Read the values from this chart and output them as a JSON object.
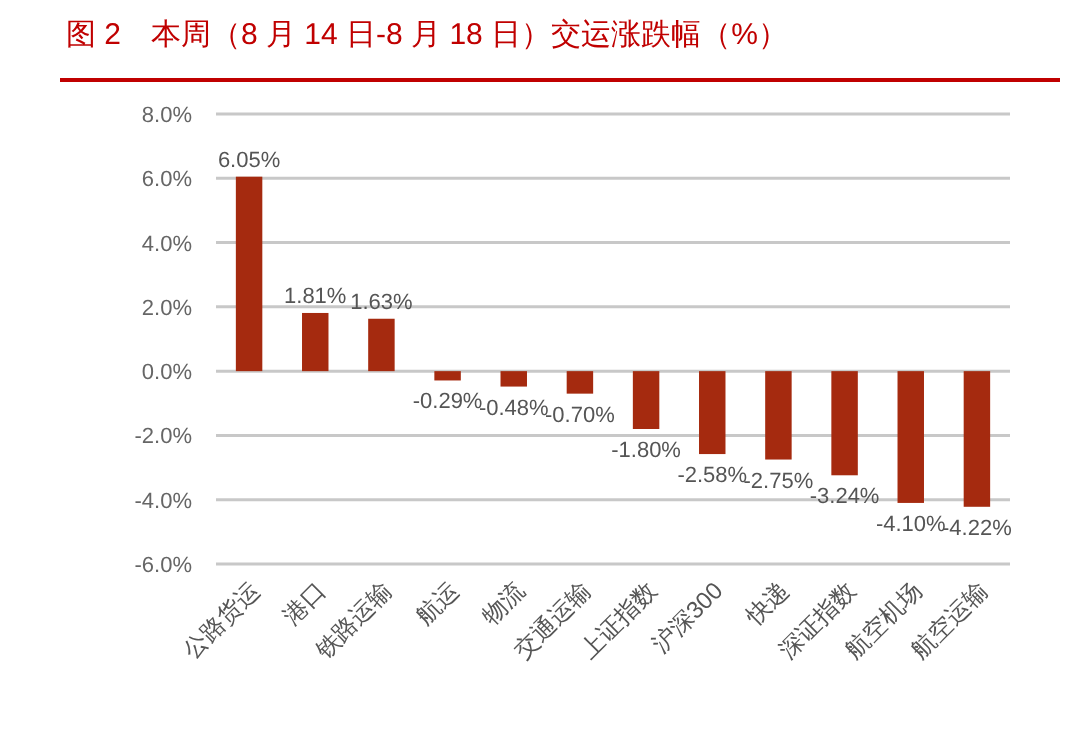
{
  "chart_data": {
    "type": "bar",
    "title": "图 2　本周（8 月 14 日-8 月 18 日）交运涨跌幅（%）",
    "categories": [
      "公路货运",
      "港口",
      "铁路运输",
      "航运",
      "物流",
      "交通运输",
      "上证指数",
      "沪深300",
      "快递",
      "深证指数",
      "航空机场",
      "航空运输"
    ],
    "values": [
      6.05,
      1.81,
      1.63,
      -0.29,
      -0.48,
      -0.7,
      -1.8,
      -2.58,
      -2.75,
      -3.24,
      -4.1,
      -4.22
    ],
    "value_labels": [
      "6.05%",
      "1.81%",
      "1.63%",
      "-0.29%",
      "-0.48%",
      "-0.70%",
      "-1.80%",
      "-2.58%",
      "-2.75%",
      "-3.24%",
      "-4.10%",
      "-4.22%"
    ],
    "color": "#a52a0f",
    "ylim": [
      -6,
      8
    ],
    "yticks": [
      {
        "value": -6,
        "label": "-6.0%"
      },
      {
        "value": -4,
        "label": "-4.0%"
      },
      {
        "value": -2,
        "label": "-2.0%"
      },
      {
        "value": 0,
        "label": "0.0%"
      },
      {
        "value": 2,
        "label": "2.0%"
      },
      {
        "value": 4,
        "label": "4.0%"
      },
      {
        "value": 6,
        "label": "6.0%"
      },
      {
        "value": 8,
        "label": "8.0%"
      }
    ],
    "grid": "y"
  }
}
